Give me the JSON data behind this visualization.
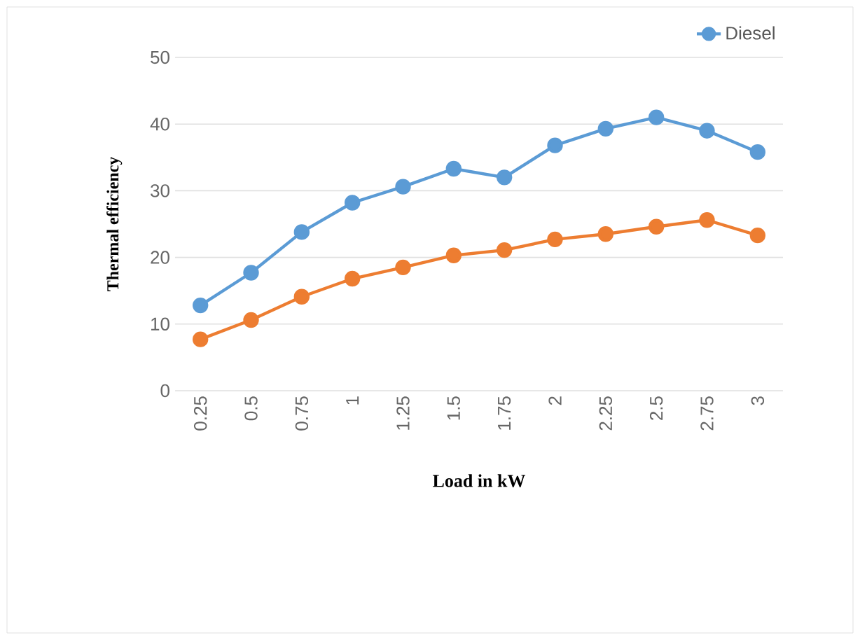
{
  "chart_data": {
    "type": "line",
    "xlabel": "Load in kW",
    "ylabel": "Thermal efficiency",
    "categories": [
      "0.25",
      "0.5",
      "0.75",
      "1",
      "1.25",
      "1.5",
      "1.75",
      "2",
      "2.25",
      "2.5",
      "2.75",
      "3"
    ],
    "series": [
      {
        "name": "Diesel",
        "color": "#5b9bd5",
        "values": [
          12.8,
          17.7,
          23.8,
          28.2,
          30.6,
          33.3,
          32,
          36.8,
          39.3,
          41,
          39,
          35.8
        ]
      },
      {
        "color": "#ed7d31",
        "values": [
          7.7,
          10.6,
          14.1,
          16.8,
          18.5,
          20.3,
          21.1,
          22.7,
          23.5,
          24.6,
          25.6,
          23.3
        ]
      }
    ],
    "ylim": [
      0,
      50
    ],
    "yticks": [
      0,
      10,
      20,
      30,
      40,
      50
    ],
    "grid": "y",
    "legend": "top right",
    "marker": "circle",
    "line_style": "solid"
  }
}
